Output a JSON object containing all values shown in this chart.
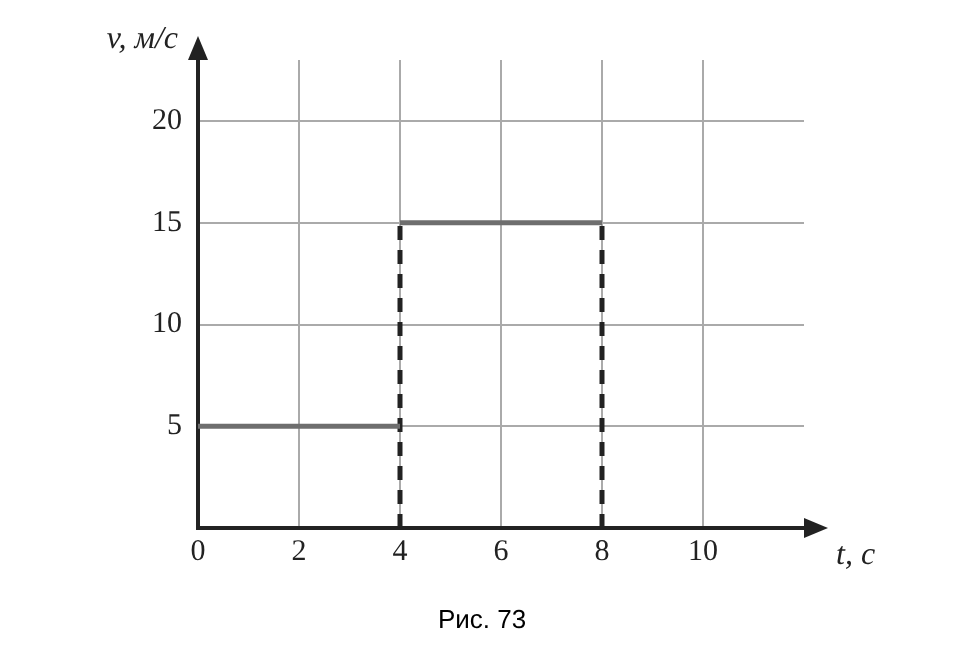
{
  "chart_data": {
    "type": "line",
    "xlabel": "t, с",
    "ylabel": "v, м/с",
    "annotations": [
      "Рис. 73"
    ],
    "xlim": [
      0,
      12
    ],
    "ylim": [
      0,
      23
    ],
    "xticks": [
      0,
      2,
      4,
      6,
      8,
      10
    ],
    "yticks": [
      5,
      10,
      15,
      20
    ],
    "grid": true,
    "legend": false,
    "marker": "none",
    "series": [
      {
        "x": [
          0,
          4
        ],
        "values": [
          5,
          5
        ],
        "color": "#6e6e6e",
        "line_style": "solid"
      },
      {
        "x": [
          4,
          8
        ],
        "values": [
          15,
          15
        ],
        "color": "#6e6e6e",
        "line_style": "solid"
      },
      {
        "x": [
          4,
          4
        ],
        "values": [
          0,
          15
        ],
        "color": "#222222",
        "line_style": "dashed"
      },
      {
        "x": [
          8,
          8
        ],
        "values": [
          0,
          15
        ],
        "color": "#222222",
        "line_style": "dashed"
      }
    ]
  }
}
